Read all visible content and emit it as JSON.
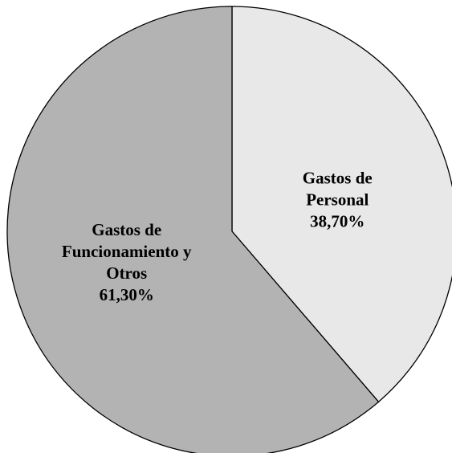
{
  "chart_data": {
    "type": "pie",
    "categories": [
      "Gastos de Personal",
      "Gastos de Funcionamiento y Otros"
    ],
    "values": [
      38.7,
      61.3
    ],
    "value_labels": [
      "38,70%",
      "61,30%"
    ],
    "colors": [
      "#e8e8e8",
      "#b3b3b3"
    ]
  }
}
